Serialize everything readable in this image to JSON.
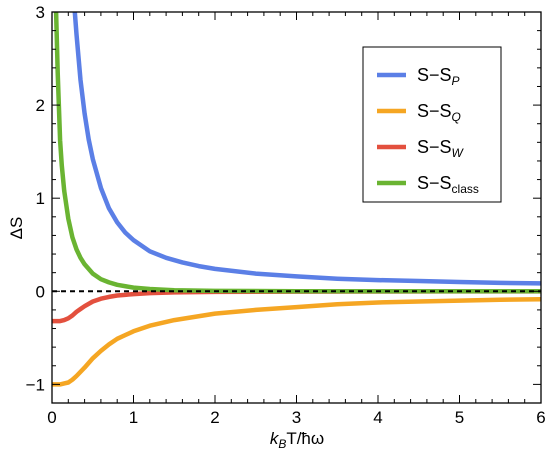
{
  "chart_data": {
    "type": "line",
    "xlabel_parts": [
      {
        "text": "k",
        "italic": true
      },
      {
        "text": "B",
        "italic": true,
        "sub": true
      },
      {
        "text": "T/ħω",
        "italic": false
      }
    ],
    "ylabel": "ΔS",
    "xlim": [
      0,
      6
    ],
    "ylim": [
      -1.2,
      3
    ],
    "xticks": [
      0,
      1,
      2,
      3,
      4,
      5,
      6
    ],
    "yticks": [
      -1,
      0,
      1,
      2,
      3
    ],
    "xtick_labels": [
      "0",
      "1",
      "2",
      "3",
      "4",
      "5",
      "6"
    ],
    "ytick_labels": [
      "−1",
      "0",
      "1",
      "2",
      "3"
    ],
    "grid": false,
    "legend_position": "top-right",
    "reference_line": {
      "y": 0,
      "style": "dashed",
      "color": "#000000"
    },
    "series": [
      {
        "legend_main": "S−S",
        "legend_sub": "P",
        "legend_sub_italic": true,
        "color": "#5b7fe6",
        "x": [
          0.28,
          0.3,
          0.35,
          0.4,
          0.45,
          0.5,
          0.6,
          0.7,
          0.8,
          0.9,
          1.0,
          1.2,
          1.4,
          1.6,
          1.8,
          2.0,
          2.5,
          3.0,
          3.5,
          4.0,
          4.5,
          5.0,
          5.5,
          6.0
        ],
        "y": [
          3.0,
          2.76,
          2.27,
          1.91,
          1.63,
          1.42,
          1.11,
          0.89,
          0.74,
          0.63,
          0.55,
          0.43,
          0.36,
          0.31,
          0.27,
          0.24,
          0.19,
          0.16,
          0.135,
          0.12,
          0.11,
          0.1,
          0.09,
          0.085
        ]
      },
      {
        "legend_main": "S−S",
        "legend_sub": "Q",
        "legend_sub_italic": true,
        "color": "#f5a623",
        "x": [
          0.0,
          0.05,
          0.1,
          0.15,
          0.2,
          0.25,
          0.3,
          0.4,
          0.5,
          0.6,
          0.7,
          0.8,
          1.0,
          1.2,
          1.5,
          2.0,
          2.5,
          3.0,
          3.5,
          4.0,
          4.5,
          5.0,
          5.5,
          6.0
        ],
        "y": [
          -1.0,
          -1.0,
          -1.0,
          -0.99,
          -0.98,
          -0.95,
          -0.91,
          -0.82,
          -0.72,
          -0.64,
          -0.57,
          -0.51,
          -0.43,
          -0.37,
          -0.31,
          -0.24,
          -0.2,
          -0.17,
          -0.14,
          -0.12,
          -0.11,
          -0.1,
          -0.09,
          -0.085
        ]
      },
      {
        "legend_main": "S−S",
        "legend_sub": "W",
        "legend_sub_italic": true,
        "color": "#e3503e",
        "x": [
          0.0,
          0.1,
          0.15,
          0.2,
          0.25,
          0.3,
          0.35,
          0.4,
          0.5,
          0.6,
          0.7,
          0.8,
          1.0,
          1.2,
          1.5,
          2.0,
          3.0,
          4.0,
          5.0,
          6.0
        ],
        "y": [
          -0.32,
          -0.32,
          -0.31,
          -0.29,
          -0.26,
          -0.22,
          -0.19,
          -0.16,
          -0.11,
          -0.08,
          -0.06,
          -0.045,
          -0.03,
          -0.02,
          -0.012,
          -0.007,
          -0.003,
          -0.002,
          -0.001,
          -0.001
        ]
      },
      {
        "legend_main": "S−S",
        "legend_sub": "class",
        "legend_sub_italic": false,
        "color": "#6ab432",
        "x": [
          0.05,
          0.07,
          0.1,
          0.12,
          0.15,
          0.2,
          0.25,
          0.3,
          0.35,
          0.4,
          0.5,
          0.6,
          0.7,
          0.8,
          1.0,
          1.2,
          1.5,
          2.0,
          3.0,
          4.0,
          5.0,
          6.0
        ],
        "y": [
          3.0,
          2.35,
          1.62,
          1.35,
          1.08,
          0.78,
          0.58,
          0.45,
          0.36,
          0.29,
          0.19,
          0.13,
          0.095,
          0.07,
          0.04,
          0.025,
          0.012,
          0.004,
          0.001,
          0.0,
          0.0,
          0.0
        ]
      }
    ]
  }
}
